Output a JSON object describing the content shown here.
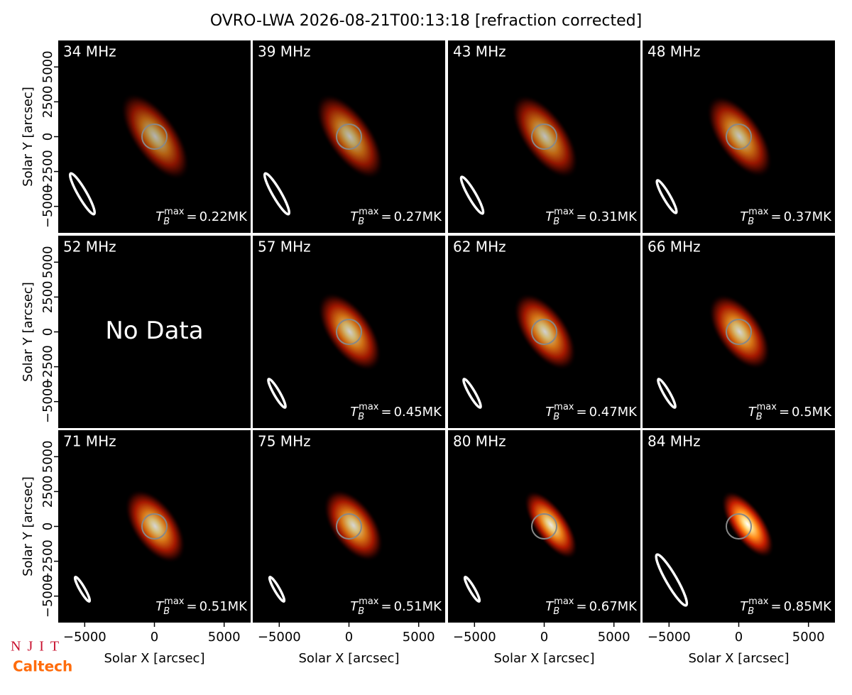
{
  "chart_data": {
    "type": "image-grid",
    "title": "OVRO-LWA 2026-08-21T00:13:18 [refraction corrected]",
    "xlabel": "Solar X [arcsec]",
    "ylabel": "Solar Y [arcsec]",
    "xlim": [
      -6900,
      6900
    ],
    "ylim": [
      -6900,
      6900
    ],
    "xticks": [
      {
        "value": -5000,
        "label": "−5000"
      },
      0,
      5000
    ],
    "yticks": [
      {
        "value": -5000,
        "label": "−5000"
      },
      {
        "value": -2500,
        "label": "−2500"
      },
      0,
      2500,
      5000
    ],
    "tb_symbol": {
      "base": "T",
      "sub": "B",
      "sup": "max",
      "eq": "="
    },
    "no_data_text": "No Data",
    "panels": [
      {
        "label": "34 MHz",
        "tmax": 0.22,
        "value_label": "0.22MK"
      },
      {
        "label": "39 MHz",
        "tmax": 0.27,
        "value_label": "0.27MK"
      },
      {
        "label": "43 MHz",
        "tmax": 0.31,
        "value_label": "0.31MK"
      },
      {
        "label": "48 MHz",
        "tmax": 0.37,
        "value_label": "0.37MK"
      },
      {
        "label": "52 MHz",
        "tmax": null,
        "value_label": null
      },
      {
        "label": "57 MHz",
        "tmax": 0.45,
        "value_label": "0.45MK"
      },
      {
        "label": "62 MHz",
        "tmax": 0.47,
        "value_label": "0.47MK"
      },
      {
        "label": "66 MHz",
        "tmax": 0.5,
        "value_label": "0.5MK"
      },
      {
        "label": "71 MHz",
        "tmax": 0.51,
        "value_label": "0.51MK"
      },
      {
        "label": "75 MHz",
        "tmax": 0.51,
        "value_label": "0.51MK"
      },
      {
        "label": "80 MHz",
        "tmax": 0.67,
        "value_label": "0.67MK"
      },
      {
        "label": "84 MHz",
        "tmax": 0.85,
        "value_label": "0.85MK"
      }
    ],
    "logos": [
      "NJIT",
      "Caltech"
    ]
  }
}
